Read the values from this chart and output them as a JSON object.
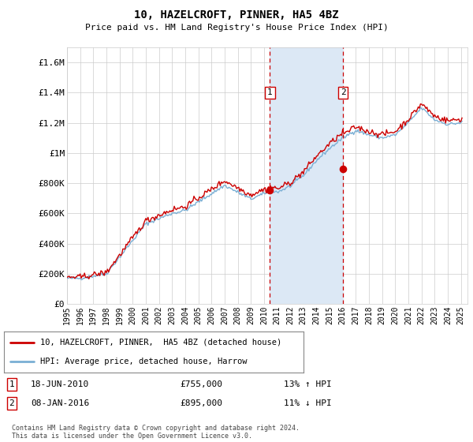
{
  "title": "10, HAZELCROFT, PINNER, HA5 4BZ",
  "subtitle": "Price paid vs. HM Land Registry's House Price Index (HPI)",
  "legend_line1": "10, HAZELCROFT, PINNER,  HA5 4BZ (detached house)",
  "legend_line2": "HPI: Average price, detached house, Harrow",
  "transaction1_date": "18-JUN-2010",
  "transaction1_price": "£755,000",
  "transaction1_hpi": "13% ↑ HPI",
  "transaction2_date": "08-JAN-2016",
  "transaction2_price": "£895,000",
  "transaction2_hpi": "11% ↓ HPI",
  "footer": "Contains HM Land Registry data © Crown copyright and database right 2024.\nThis data is licensed under the Open Government Licence v3.0.",
  "ylim": [
    0,
    1700000
  ],
  "yticks": [
    0,
    200000,
    400000,
    600000,
    800000,
    1000000,
    1200000,
    1400000,
    1600000
  ],
  "ytick_labels": [
    "£0",
    "£200K",
    "£400K",
    "£600K",
    "£800K",
    "£1M",
    "£1.2M",
    "£1.4M",
    "£1.6M"
  ],
  "transaction1_x": 2010.46,
  "transaction2_x": 2016.02,
  "transaction1_y": 755000,
  "transaction2_y": 895000,
  "red_color": "#cc0000",
  "blue_color": "#7aafd4",
  "shade_color": "#dce8f5",
  "bg_color": "#ffffff",
  "grid_color": "#cccccc",
  "xmin": 1995,
  "xmax": 2025.5
}
